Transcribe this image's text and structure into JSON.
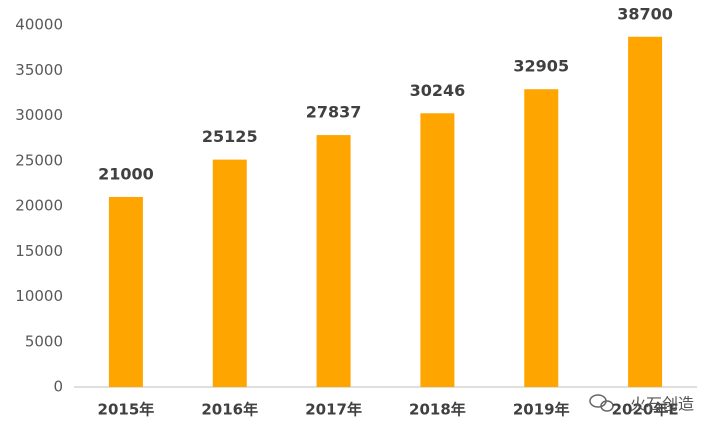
{
  "chart_data": {
    "type": "bar",
    "categories": [
      "2015年",
      "2016年",
      "2017年",
      "2018年",
      "2019年",
      "2020年E"
    ],
    "values": [
      21000,
      25125,
      27837,
      30246,
      32905,
      38700
    ],
    "color": "#ffa500",
    "ylim": [
      0,
      40000
    ],
    "yticks": [
      0,
      5000,
      10000,
      15000,
      20000,
      25000,
      30000,
      35000,
      40000
    ],
    "grid": false
  },
  "watermark": "火石创造"
}
